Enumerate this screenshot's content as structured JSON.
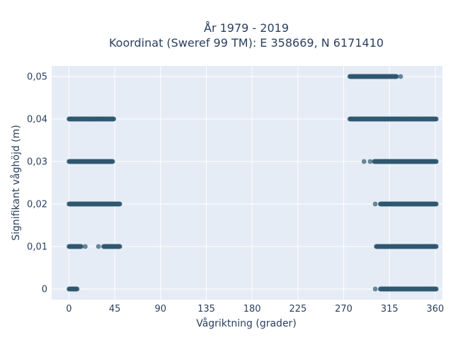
{
  "chart_data": {
    "type": "scatter",
    "title_line1": "År 1979 - 2019",
    "title_line2": "Koordinat (Sweref 99 TM): E 358669, N 6171410",
    "xlabel": "Vågriktning (grader)",
    "ylabel": "Signifikant våghöjd (m)",
    "xlim": [
      -17,
      367
    ],
    "ylim": [
      -0.0025,
      0.0525
    ],
    "x_ticks": [
      0,
      45,
      90,
      135,
      180,
      225,
      270,
      315,
      360
    ],
    "x_tick_labels": [
      "0",
      "45",
      "90",
      "135",
      "180",
      "225",
      "270",
      "315",
      "360"
    ],
    "y_ticks": [
      0,
      0.01,
      0.02,
      0.03,
      0.04,
      0.05
    ],
    "y_tick_labels": [
      "0",
      "0,01",
      "0,02",
      "0,03",
      "0,04",
      "0,05"
    ],
    "grid": true,
    "plot_bg": "#e5ecf6",
    "marker_color": "#2f5870",
    "marker_opacity": 0.7,
    "point_groups": [
      {
        "y": 0.05,
        "x_ranges": [
          [
            276,
            322
          ]
        ],
        "isolated": [
          326
        ]
      },
      {
        "y": 0.04,
        "x_ranges": [
          [
            0,
            44
          ],
          [
            276,
            361
          ]
        ],
        "isolated": []
      },
      {
        "y": 0.03,
        "x_ranges": [
          [
            0,
            43
          ],
          [
            300,
            361
          ]
        ],
        "isolated": [
          290,
          296
        ]
      },
      {
        "y": 0.02,
        "x_ranges": [
          [
            0,
            50
          ],
          [
            306,
            361
          ]
        ],
        "isolated": [
          301
        ]
      },
      {
        "y": 0.01,
        "x_ranges": [
          [
            0,
            12
          ],
          [
            34,
            50
          ],
          [
            302,
            361
          ]
        ],
        "isolated": [
          16,
          29
        ]
      },
      {
        "y": 0.0,
        "x_ranges": [
          [
            0,
            8
          ],
          [
            306,
            361
          ]
        ],
        "isolated": [
          301
        ]
      }
    ]
  }
}
